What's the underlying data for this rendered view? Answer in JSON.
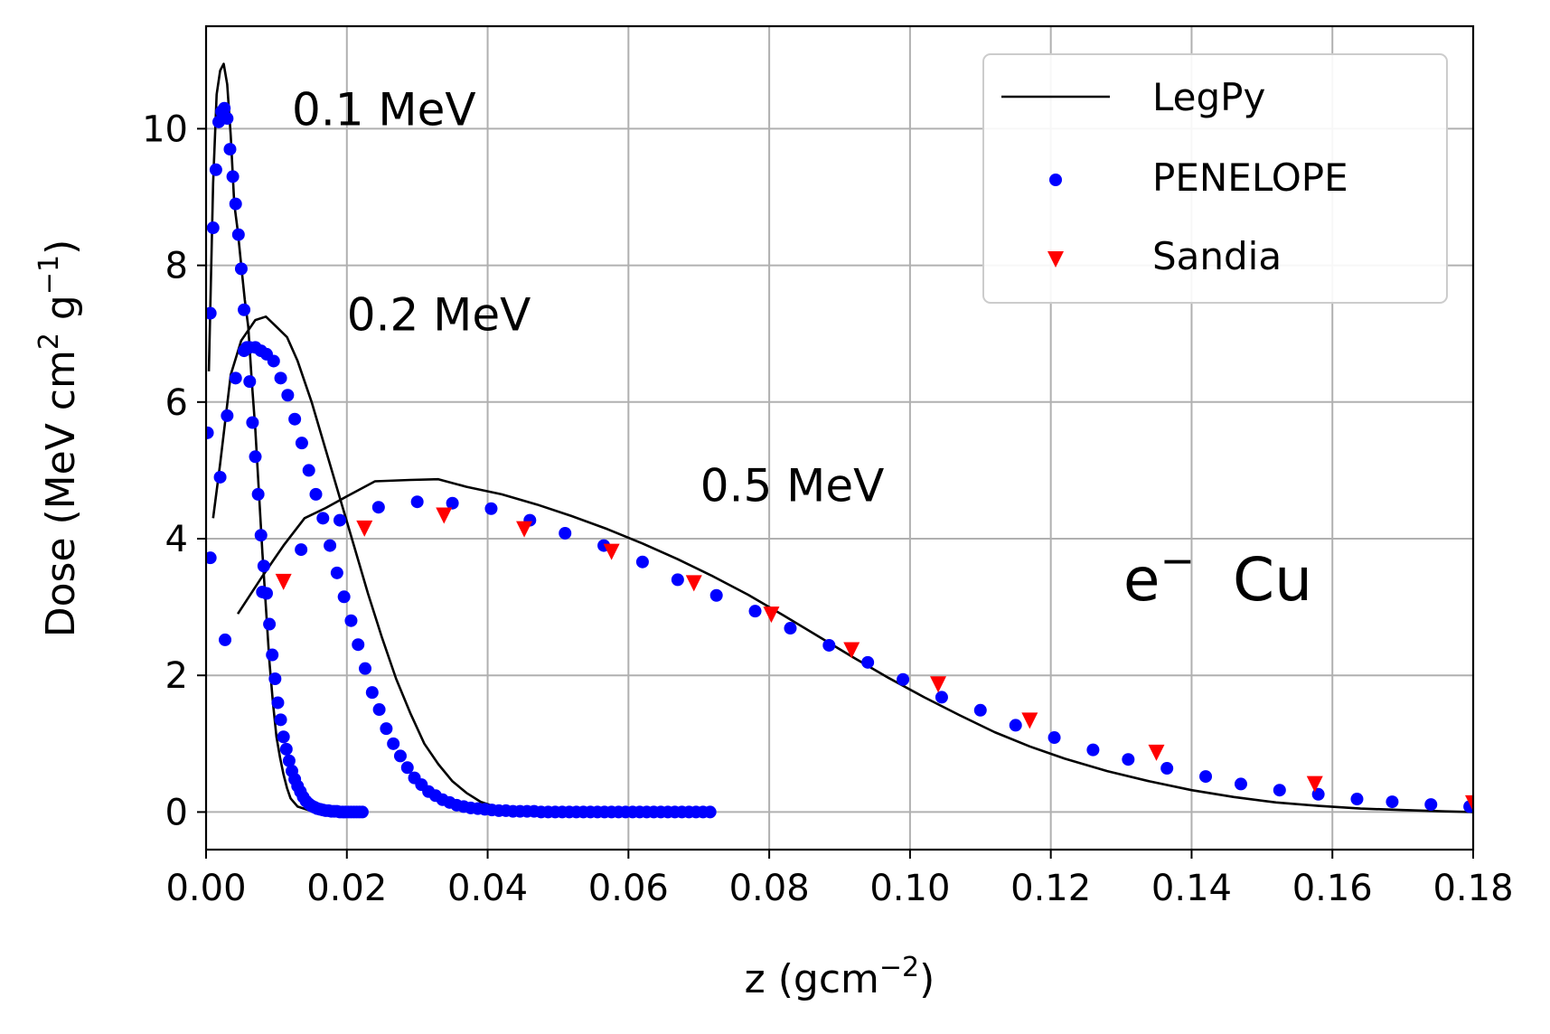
{
  "chart_data": {
    "type": "line",
    "title": "",
    "xlabel": "z (gcm",
    "xlabel_sup": "−2",
    "xlabel_end": ")",
    "ylabel_parts": [
      "Dose (MeV cm",
      "2",
      " g",
      "−1",
      ")"
    ],
    "xlim": [
      0.0,
      0.18
    ],
    "ylim": [
      -0.55,
      11.5
    ],
    "xticks": [
      0.0,
      0.02,
      0.04,
      0.06,
      0.08,
      0.1,
      0.12,
      0.14,
      0.16,
      0.18
    ],
    "xtick_labels": [
      "0.00",
      "0.02",
      "0.04",
      "0.06",
      "0.08",
      "0.10",
      "0.12",
      "0.14",
      "0.16",
      "0.18"
    ],
    "yticks": [
      0,
      2,
      4,
      6,
      8,
      10
    ],
    "ytick_labels": [
      "0",
      "2",
      "4",
      "6",
      "8",
      "10"
    ],
    "grid": true,
    "legend_position": "top-right",
    "colors": {
      "legpy": "#000000",
      "penelope": "#0000ff",
      "sandia": "#ff0000"
    },
    "annotations": [
      {
        "text": "0.1 MeV",
        "x": 0.0122,
        "y": 10.05
      },
      {
        "text": "0.2 MeV",
        "x": 0.02,
        "y": 7.05
      },
      {
        "text": "0.5 MeV",
        "x": 0.0702,
        "y": 4.55
      }
    ],
    "big_annotation": {
      "base": "e",
      "sup": "−",
      "rest": " Cu",
      "x": 0.1303,
      "y": 3.1
    },
    "legend": [
      {
        "label": "LegPy",
        "marker": "line"
      },
      {
        "label": "PENELOPE",
        "marker": "dot"
      },
      {
        "label": "Sandia",
        "marker": "triangle"
      }
    ],
    "series": [
      {
        "name": "LegPy",
        "kind": "line",
        "group": "0.1 MeV",
        "x": [
          0.0004,
          0.001,
          0.0015,
          0.002,
          0.0025,
          0.003,
          0.0035,
          0.004,
          0.0045,
          0.005,
          0.0055,
          0.006,
          0.0065,
          0.007,
          0.0075,
          0.008,
          0.0085,
          0.009,
          0.0095,
          0.01,
          0.0105,
          0.011,
          0.0115,
          0.012,
          0.013,
          0.0145,
          0.016,
          0.018,
          0.02
        ],
        "y": [
          6.45,
          9.2,
          10.5,
          10.85,
          10.95,
          10.65,
          9.9,
          8.9,
          8.5,
          8.0,
          7.5,
          7.1,
          6.3,
          5.6,
          4.7,
          3.8,
          3.0,
          2.2,
          1.6,
          1.1,
          0.8,
          0.55,
          0.35,
          0.2,
          0.08,
          0.03,
          0.01,
          0.0,
          0.0
        ]
      },
      {
        "name": "LegPy",
        "kind": "line",
        "group": "0.2 MeV",
        "x": [
          0.001,
          0.002,
          0.0035,
          0.005,
          0.007,
          0.0085,
          0.01,
          0.0115,
          0.013,
          0.015,
          0.017,
          0.019,
          0.021,
          0.023,
          0.025,
          0.027,
          0.029,
          0.031,
          0.033,
          0.035,
          0.037,
          0.039,
          0.041,
          0.044,
          0.048,
          0.053,
          0.06
        ],
        "y": [
          4.3,
          5.1,
          6.4,
          6.9,
          7.2,
          7.25,
          7.1,
          6.95,
          6.6,
          6.0,
          5.3,
          4.6,
          3.9,
          3.2,
          2.55,
          1.95,
          1.45,
          1.0,
          0.7,
          0.45,
          0.28,
          0.15,
          0.08,
          0.03,
          0.01,
          0.0,
          0.0
        ]
      },
      {
        "name": "LegPy",
        "kind": "line",
        "group": "0.5 MeV",
        "x": [
          0.0045,
          0.008,
          0.011,
          0.014,
          0.017,
          0.02,
          0.024,
          0.029,
          0.033,
          0.037,
          0.042,
          0.047,
          0.052,
          0.057,
          0.062,
          0.067,
          0.072,
          0.077,
          0.082,
          0.087,
          0.092,
          0.097,
          0.102,
          0.107,
          0.112,
          0.117,
          0.122,
          0.128,
          0.134,
          0.14,
          0.146,
          0.152,
          0.158,
          0.164,
          0.17,
          0.176,
          0.18
        ],
        "y": [
          2.9,
          3.45,
          3.9,
          4.3,
          4.45,
          4.62,
          4.84,
          4.86,
          4.87,
          4.76,
          4.65,
          4.5,
          4.33,
          4.14,
          3.93,
          3.7,
          3.45,
          3.18,
          2.88,
          2.57,
          2.26,
          1.96,
          1.68,
          1.42,
          1.17,
          0.96,
          0.78,
          0.6,
          0.45,
          0.32,
          0.22,
          0.14,
          0.09,
          0.05,
          0.03,
          0.01,
          0.0
        ]
      },
      {
        "name": "PENELOPE",
        "kind": "dot",
        "group": "0.1 MeV",
        "x": [
          0.0002,
          0.0006,
          0.001,
          0.0014,
          0.0018,
          0.0022,
          0.0026,
          0.003,
          0.0034,
          0.0038,
          0.0042,
          0.0046,
          0.005,
          0.0054,
          0.0058,
          0.0062,
          0.0066,
          0.007,
          0.0074,
          0.0078,
          0.0082,
          0.0086,
          0.009,
          0.0094,
          0.0098,
          0.0102,
          0.0106,
          0.011,
          0.0114,
          0.0118,
          0.0122,
          0.0126,
          0.013,
          0.0134,
          0.0138,
          0.0142,
          0.0146,
          0.015,
          0.0154,
          0.0158,
          0.0162,
          0.0166,
          0.017,
          0.0174,
          0.0178,
          0.0182,
          0.0186,
          0.019,
          0.0194,
          0.0198,
          0.0202,
          0.0206,
          0.021,
          0.0214,
          0.0218,
          0.0222
        ],
        "y": [
          5.55,
          7.3,
          8.55,
          9.4,
          10.1,
          10.25,
          10.3,
          10.15,
          9.7,
          9.3,
          8.9,
          8.45,
          7.95,
          7.35,
          6.8,
          6.3,
          5.7,
          5.2,
          4.65,
          4.05,
          3.6,
          3.2,
          2.75,
          2.3,
          1.95,
          1.6,
          1.35,
          1.1,
          0.92,
          0.75,
          0.6,
          0.48,
          0.38,
          0.3,
          0.22,
          0.16,
          0.12,
          0.09,
          0.07,
          0.05,
          0.04,
          0.03,
          0.02,
          0.02,
          0.01,
          0.01,
          0.01,
          0.0,
          0.0,
          0.0,
          0.0,
          0.0,
          0.0,
          0.0,
          0.0,
          0.0
        ]
      },
      {
        "name": "PENELOPE",
        "kind": "dot",
        "group": "0.2 MeV",
        "x": [
          0.0006,
          0.002,
          0.003,
          0.0042,
          0.0054,
          0.0062,
          0.007,
          0.0078,
          0.0086,
          0.0096,
          0.0106,
          0.0116,
          0.0126,
          0.0136,
          0.0146,
          0.0156,
          0.0166,
          0.0176,
          0.0186,
          0.0196,
          0.0206,
          0.0216,
          0.0226,
          0.0236,
          0.0246,
          0.0256,
          0.0266,
          0.0276,
          0.0286,
          0.0296,
          0.0306,
          0.0316,
          0.0326,
          0.0336,
          0.0346,
          0.0356,
          0.0366,
          0.0376,
          0.0386,
          0.0396,
          0.0406,
          0.0416,
          0.0426,
          0.0436,
          0.0446,
          0.0456,
          0.0466,
          0.0476,
          0.0486,
          0.0496,
          0.0506,
          0.0516,
          0.0526,
          0.0536,
          0.0546,
          0.0556,
          0.0566,
          0.0576,
          0.0586,
          0.0596,
          0.0606,
          0.0616,
          0.0626,
          0.0636,
          0.0646,
          0.0656,
          0.0666,
          0.0676,
          0.0686,
          0.0696,
          0.0706,
          0.0716
        ],
        "y": [
          3.72,
          4.9,
          5.8,
          6.35,
          6.75,
          6.8,
          6.8,
          6.75,
          6.7,
          6.6,
          6.35,
          6.1,
          5.75,
          5.4,
          5.0,
          4.65,
          4.3,
          3.9,
          3.5,
          3.15,
          2.8,
          2.45,
          2.1,
          1.75,
          1.5,
          1.22,
          1.0,
          0.82,
          0.65,
          0.5,
          0.4,
          0.3,
          0.24,
          0.18,
          0.14,
          0.1,
          0.08,
          0.06,
          0.05,
          0.04,
          0.03,
          0.02,
          0.02,
          0.01,
          0.01,
          0.01,
          0.01,
          0.0,
          0.0,
          0.0,
          0.0,
          0.0,
          0.0,
          0.0,
          0.0,
          0.0,
          0.0,
          0.0,
          0.0,
          0.0,
          0.0,
          0.0,
          0.0,
          0.0,
          0.0,
          0.0,
          0.0,
          0.0,
          0.0,
          0.0,
          0.0,
          0.0
        ]
      },
      {
        "name": "PENELOPE",
        "kind": "dot",
        "group": "0.5 MeV",
        "x": [
          0.0027,
          0.008,
          0.0135,
          0.019,
          0.0245,
          0.03,
          0.035,
          0.0405,
          0.046,
          0.051,
          0.0565,
          0.062,
          0.067,
          0.0725,
          0.078,
          0.083,
          0.0885,
          0.094,
          0.099,
          0.1045,
          0.11,
          0.115,
          0.1205,
          0.126,
          0.131,
          0.1365,
          0.142,
          0.147,
          0.1525,
          0.158,
          0.1635,
          0.1685,
          0.174,
          0.1795
        ],
        "y": [
          2.52,
          3.22,
          3.84,
          4.27,
          4.46,
          4.54,
          4.52,
          4.44,
          4.27,
          4.08,
          3.9,
          3.66,
          3.4,
          3.17,
          2.94,
          2.69,
          2.44,
          2.19,
          1.94,
          1.68,
          1.49,
          1.27,
          1.09,
          0.91,
          0.77,
          0.64,
          0.52,
          0.41,
          0.32,
          0.26,
          0.19,
          0.15,
          0.11,
          0.08
        ]
      },
      {
        "name": "Sandia",
        "kind": "triangle",
        "group": "0.5 MeV",
        "x": [
          0.011,
          0.0225,
          0.0338,
          0.0452,
          0.0576,
          0.0693,
          0.0803,
          0.0917,
          0.104,
          0.117,
          0.135,
          0.1575,
          0.18
        ],
        "y": [
          3.38,
          4.16,
          4.35,
          4.15,
          3.82,
          3.36,
          2.9,
          2.38,
          1.88,
          1.35,
          0.88,
          0.42,
          0.14
        ]
      }
    ]
  }
}
